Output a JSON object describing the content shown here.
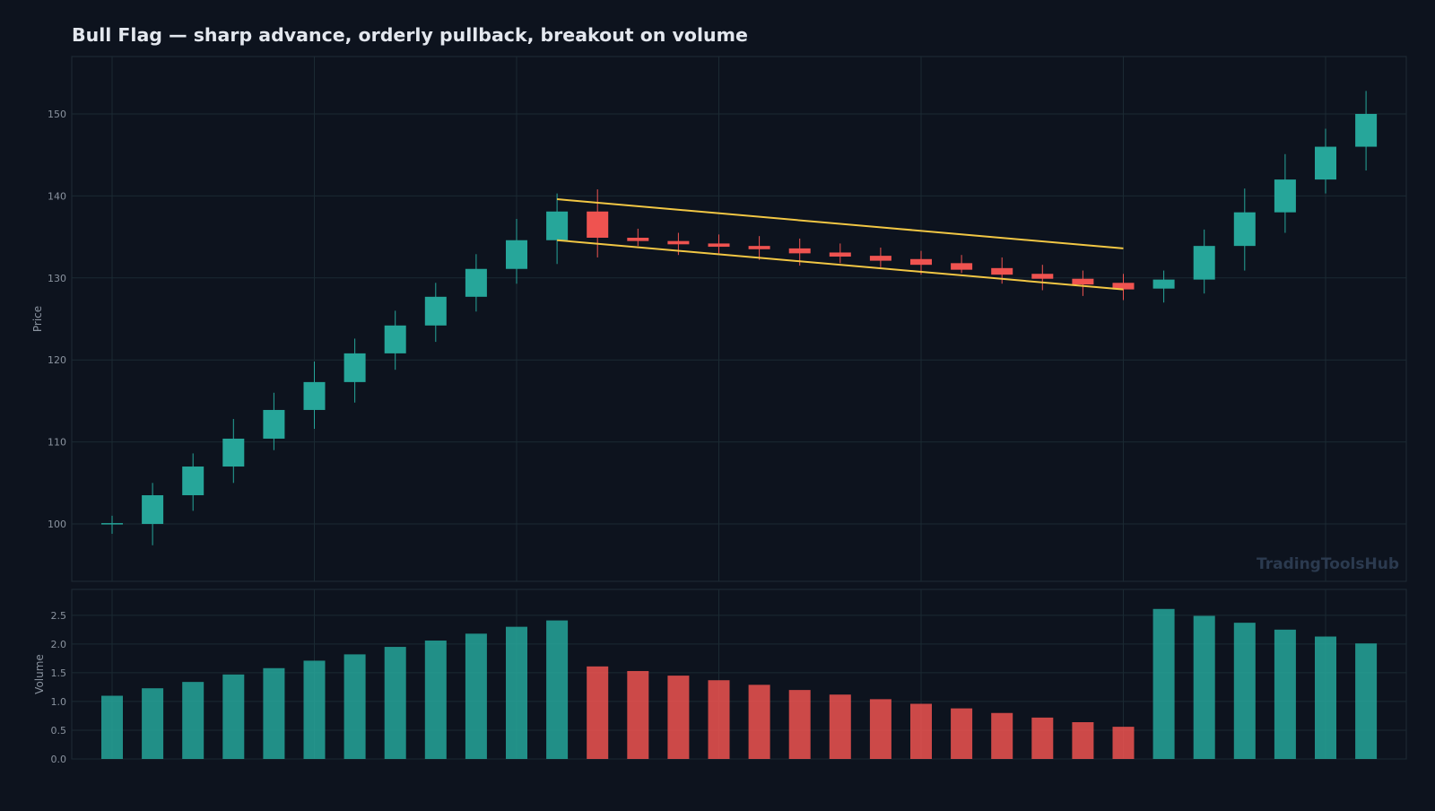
{
  "chart_data": {
    "type": "candlestick",
    "title": "Bull Flag — sharp advance, orderly pullback, breakout on volume",
    "watermark": "TradingToolsHub",
    "price_axis": {
      "label": "Price",
      "ylim": [
        93,
        157
      ],
      "ticks": [
        100,
        110,
        120,
        130,
        140,
        150
      ]
    },
    "volume_axis": {
      "label": "Volume",
      "ylim": [
        0,
        2.95
      ],
      "ticks": [
        "0.0",
        "0.5",
        "1.0",
        "1.5",
        "2.0",
        "2.5"
      ]
    },
    "grid": true,
    "colors": {
      "background": "#0d131e",
      "up": "#26a69a",
      "down": "#ef5350",
      "flag_lines": "#f2c744",
      "grid": "#1b2a33",
      "axis_text": "#8a939f",
      "title": "#e3e7ee",
      "watermark": "#2b3a4f"
    },
    "candles": [
      {
        "o": 100.0,
        "h": 101.0,
        "l": 98.8,
        "c": 100.1,
        "v": 1.1
      },
      {
        "o": 100.0,
        "h": 105.0,
        "l": 97.4,
        "c": 103.5,
        "v": 1.23
      },
      {
        "o": 103.5,
        "h": 108.6,
        "l": 101.6,
        "c": 107.0,
        "v": 1.34
      },
      {
        "o": 107.0,
        "h": 112.8,
        "l": 105.0,
        "c": 110.4,
        "v": 1.47
      },
      {
        "o": 110.4,
        "h": 116.0,
        "l": 109.0,
        "c": 113.9,
        "v": 1.58
      },
      {
        "o": 113.9,
        "h": 119.8,
        "l": 111.6,
        "c": 117.3,
        "v": 1.71
      },
      {
        "o": 117.3,
        "h": 122.6,
        "l": 114.8,
        "c": 120.8,
        "v": 1.82
      },
      {
        "o": 120.8,
        "h": 126.0,
        "l": 118.8,
        "c": 124.2,
        "v": 1.95
      },
      {
        "o": 124.2,
        "h": 129.4,
        "l": 122.2,
        "c": 127.7,
        "v": 2.06
      },
      {
        "o": 127.7,
        "h": 132.9,
        "l": 125.9,
        "c": 131.1,
        "v": 2.18
      },
      {
        "o": 131.1,
        "h": 137.2,
        "l": 129.3,
        "c": 134.6,
        "v": 2.3
      },
      {
        "o": 134.6,
        "h": 140.3,
        "l": 131.7,
        "c": 138.1,
        "v": 2.41
      },
      {
        "o": 138.1,
        "h": 140.8,
        "l": 132.5,
        "c": 134.9,
        "v": 1.61
      },
      {
        "o": 134.9,
        "h": 136.0,
        "l": 133.9,
        "c": 134.5,
        "v": 1.53
      },
      {
        "o": 134.5,
        "h": 135.5,
        "l": 132.8,
        "c": 134.1,
        "v": 1.45
      },
      {
        "o": 134.2,
        "h": 135.3,
        "l": 133.0,
        "c": 133.8,
        "v": 1.37
      },
      {
        "o": 133.9,
        "h": 135.1,
        "l": 132.2,
        "c": 133.5,
        "v": 1.29
      },
      {
        "o": 133.6,
        "h": 134.8,
        "l": 131.5,
        "c": 133.0,
        "v": 1.2
      },
      {
        "o": 133.1,
        "h": 134.2,
        "l": 131.8,
        "c": 132.6,
        "v": 1.12
      },
      {
        "o": 132.7,
        "h": 133.7,
        "l": 131.3,
        "c": 132.1,
        "v": 1.04
      },
      {
        "o": 132.3,
        "h": 133.3,
        "l": 130.4,
        "c": 131.6,
        "v": 0.96
      },
      {
        "o": 131.8,
        "h": 132.8,
        "l": 130.6,
        "c": 131.0,
        "v": 0.88
      },
      {
        "o": 131.2,
        "h": 132.5,
        "l": 129.3,
        "c": 130.4,
        "v": 0.8
      },
      {
        "o": 130.5,
        "h": 131.6,
        "l": 128.5,
        "c": 129.9,
        "v": 0.72
      },
      {
        "o": 129.9,
        "h": 130.9,
        "l": 127.8,
        "c": 129.2,
        "v": 0.64
      },
      {
        "o": 129.4,
        "h": 130.5,
        "l": 127.3,
        "c": 128.6,
        "v": 0.56
      },
      {
        "o": 128.7,
        "h": 130.9,
        "l": 127.0,
        "c": 129.8,
        "v": 2.61
      },
      {
        "o": 129.8,
        "h": 135.9,
        "l": 128.1,
        "c": 133.9,
        "v": 2.49
      },
      {
        "o": 133.9,
        "h": 140.9,
        "l": 130.9,
        "c": 138.0,
        "v": 2.37
      },
      {
        "o": 138.0,
        "h": 145.1,
        "l": 135.5,
        "c": 142.0,
        "v": 2.25
      },
      {
        "o": 142.0,
        "h": 148.2,
        "l": 140.3,
        "c": 146.0,
        "v": 2.13
      },
      {
        "o": 146.0,
        "h": 152.8,
        "l": 143.1,
        "c": 150.0,
        "v": 2.01
      }
    ],
    "flag_lines": [
      {
        "from": {
          "i": 11,
          "price": 139.6
        },
        "to": {
          "i": 25,
          "price": 133.6
        }
      },
      {
        "from": {
          "i": 11,
          "price": 134.6
        },
        "to": {
          "i": 25,
          "price": 128.6
        }
      }
    ]
  }
}
